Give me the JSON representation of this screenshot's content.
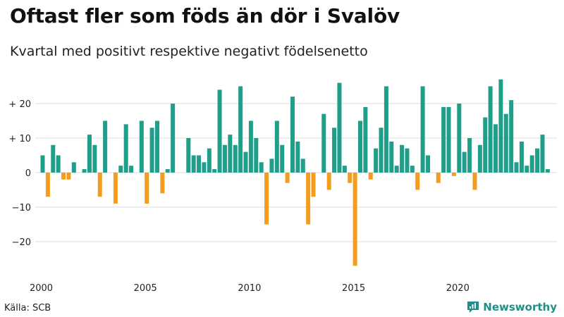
{
  "title": "Oftast fler som föds än dör i Svalöv",
  "subtitle": "Kvartal med positivt respektive negativt födelsenetto",
  "source": "Källa: SCB",
  "brand": "Newsworthy",
  "colors": {
    "positive": "#1f9e89",
    "negative": "#f39c1e",
    "grid": "#dddddd",
    "brand": "#1f8f87"
  },
  "chart_data": {
    "type": "bar",
    "title": "Oftast fler som föds än dör i Svalöv",
    "subtitle": "Kvartal med positivt respektive negativt födelsenetto",
    "xlabel": "",
    "ylabel": "",
    "start_year": 2000,
    "start_quarter": 1,
    "ylim": [
      -30,
      30
    ],
    "yticks": [
      {
        "value": 20,
        "label": "+ 20"
      },
      {
        "value": 10,
        "label": "+ 10"
      },
      {
        "value": 0,
        "label": "0"
      },
      {
        "value": -10,
        "label": "−10"
      },
      {
        "value": -20,
        "label": "−20"
      }
    ],
    "xticks": [
      {
        "year": 2000,
        "label": "2000"
      },
      {
        "year": 2005,
        "label": "2005"
      },
      {
        "year": 2010,
        "label": "2010"
      },
      {
        "year": 2015,
        "label": "2015"
      },
      {
        "year": 2020,
        "label": "2020"
      }
    ],
    "values": [
      5,
      -7,
      8,
      5,
      -2,
      -2,
      3,
      0,
      1,
      11,
      8,
      -7,
      15,
      0,
      -9,
      2,
      14,
      2,
      0,
      15,
      -9,
      13,
      15,
      -6,
      1,
      20,
      0,
      0,
      10,
      5,
      5,
      3,
      7,
      1,
      24,
      8,
      11,
      8,
      25,
      6,
      15,
      10,
      3,
      -15,
      4,
      15,
      8,
      -3,
      22,
      9,
      4,
      -15,
      -7,
      0,
      17,
      -5,
      13,
      26,
      2,
      -3,
      -27,
      15,
      19,
      -2,
      7,
      13,
      25,
      9,
      2,
      8,
      7,
      2,
      -5,
      25,
      5,
      0,
      -3,
      19,
      19,
      -1,
      20,
      6,
      10,
      -5,
      8,
      16,
      25,
      14,
      27,
      17,
      21,
      3,
      9,
      2,
      5,
      7,
      11,
      1
    ]
  }
}
